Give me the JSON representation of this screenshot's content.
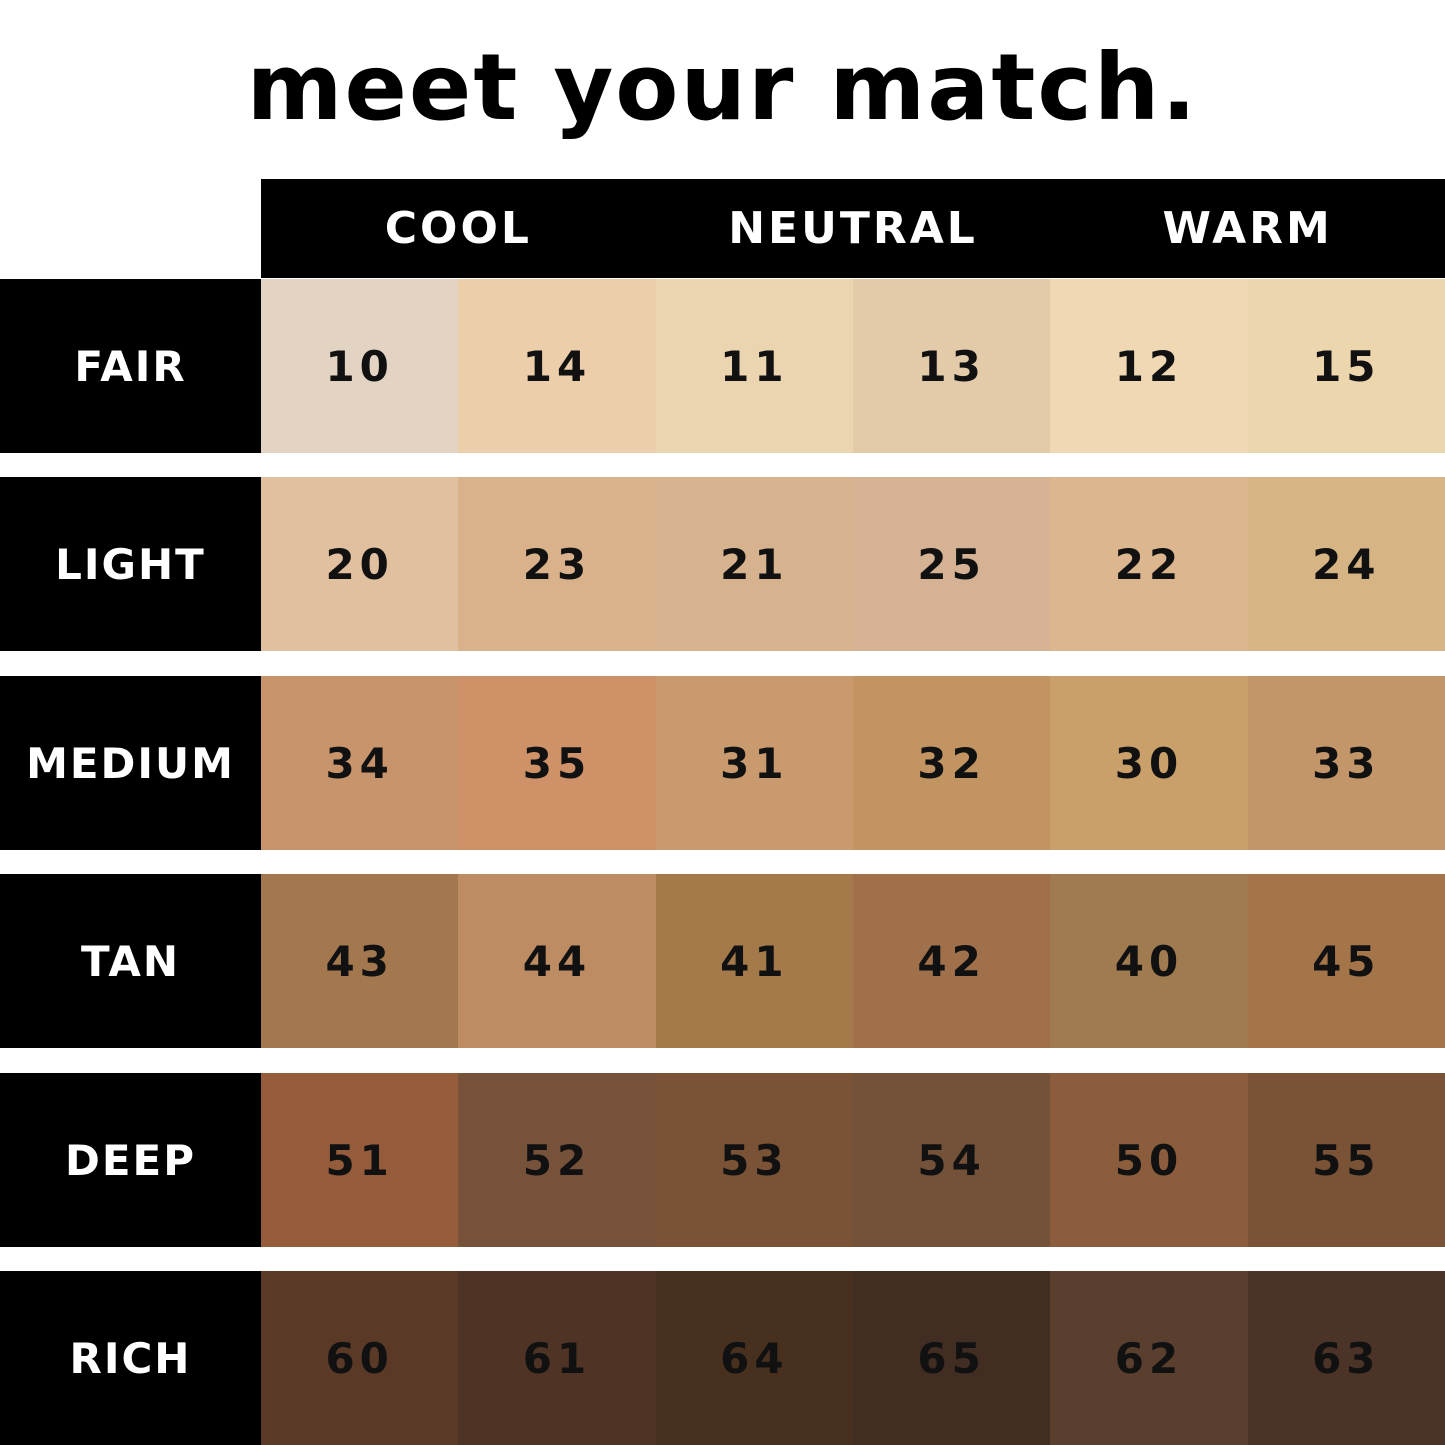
{
  "title": "meet your match.",
  "columns": [
    "COOL",
    "NEUTRAL",
    "WARM"
  ],
  "rows": [
    {
      "label": "FAIR",
      "shades": [
        "10",
        "14",
        "11",
        "13",
        "12",
        "15"
      ],
      "colors": [
        "#e3d3c2",
        "#ecceab",
        "#ebd5b0",
        "#e3caa9",
        "#efd8b3",
        "#ebd6ae"
      ]
    },
    {
      "label": "LIGHT",
      "shades": [
        "20",
        "23",
        "21",
        "25",
        "22",
        "24"
      ],
      "colors": [
        "#e0c09f",
        "#d9b28c",
        "#d7b28e",
        "#d4b293",
        "#dbb68f",
        "#d6b483"
      ]
    },
    {
      "label": "MEDIUM",
      "shades": [
        "34",
        "35",
        "31",
        "32",
        "30",
        "33"
      ],
      "colors": [
        "#c8946b",
        "#cf9168",
        "#c99a6e",
        "#c19461",
        "#c9a06a",
        "#c29669"
      ]
    },
    {
      "label": "TAN",
      "shades": [
        "43",
        "44",
        "41",
        "42",
        "40",
        "45"
      ],
      "colors": [
        "#a3784e",
        "#bd8c62",
        "#a57a4b",
        "#a0704b",
        "#a07b50",
        "#a5754a"
      ]
    },
    {
      "label": "DEEP",
      "shades": [
        "51",
        "52",
        "53",
        "54",
        "50",
        "55"
      ],
      "colors": [
        "#955c3b",
        "#76523a",
        "#7a5336",
        "#74523a",
        "#8b5d3c",
        "#7a5235"
      ]
    },
    {
      "label": "RICH",
      "shades": [
        "60",
        "61",
        "64",
        "65",
        "62",
        "63"
      ],
      "colors": [
        "#5a3a27",
        "#4f3324",
        "#48301f",
        "#412d21",
        "#5a3f2f",
        "#4c3327"
      ]
    }
  ]
}
